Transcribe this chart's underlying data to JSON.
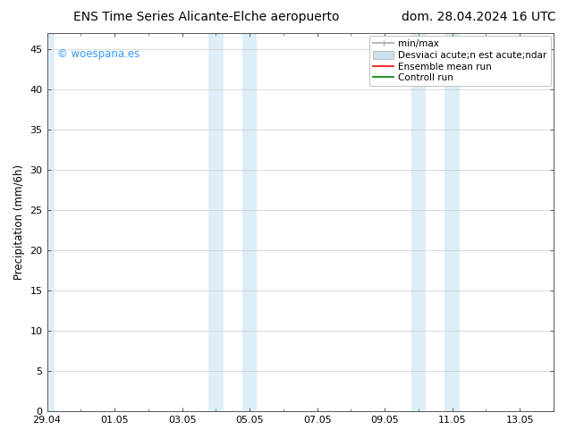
{
  "title_left": "ENS Time Series Alicante-Elche aeropuerto",
  "title_right": "dom. 28.04.2024 16 UTC",
  "ylabel": "Precipitation (mm/6h)",
  "xlabel_ticks": [
    "29.04",
    "01.05",
    "03.05",
    "05.05",
    "07.05",
    "09.05",
    "11.05",
    "13.05"
  ],
  "xlim": [
    0,
    15.0
  ],
  "ylim": [
    0,
    47
  ],
  "yticks": [
    0,
    5,
    10,
    15,
    20,
    25,
    30,
    35,
    40,
    45
  ],
  "shade_color": "#ddeef8",
  "shade_regions": [
    {
      "xstart": -0.05,
      "xend": 0.22
    },
    {
      "xstart": 4.78,
      "xend": 5.22
    },
    {
      "xstart": 5.78,
      "xend": 6.22
    },
    {
      "xstart": 10.78,
      "xend": 11.22
    },
    {
      "xstart": 11.78,
      "xend": 12.22
    }
  ],
  "watermark_text": "© woespana.es",
  "watermark_color": "#3399ff",
  "legend_items": [
    {
      "label": "min/max",
      "color": "#aaaaaa",
      "lw": 1.2
    },
    {
      "label": "Desviaci acute;n est acute;ndar",
      "color": "#cce0f0",
      "lw": 6
    },
    {
      "label": "Ensemble mean run",
      "color": "red",
      "lw": 1.2
    },
    {
      "label": "Controll run",
      "color": "green",
      "lw": 1.2
    }
  ],
  "bg_color": "#ffffff",
  "grid_color": "#cccccc",
  "spine_color": "#555555",
  "title_fontsize": 10,
  "tick_fontsize": 8,
  "ylabel_fontsize": 8.5,
  "legend_fontsize": 7.5
}
